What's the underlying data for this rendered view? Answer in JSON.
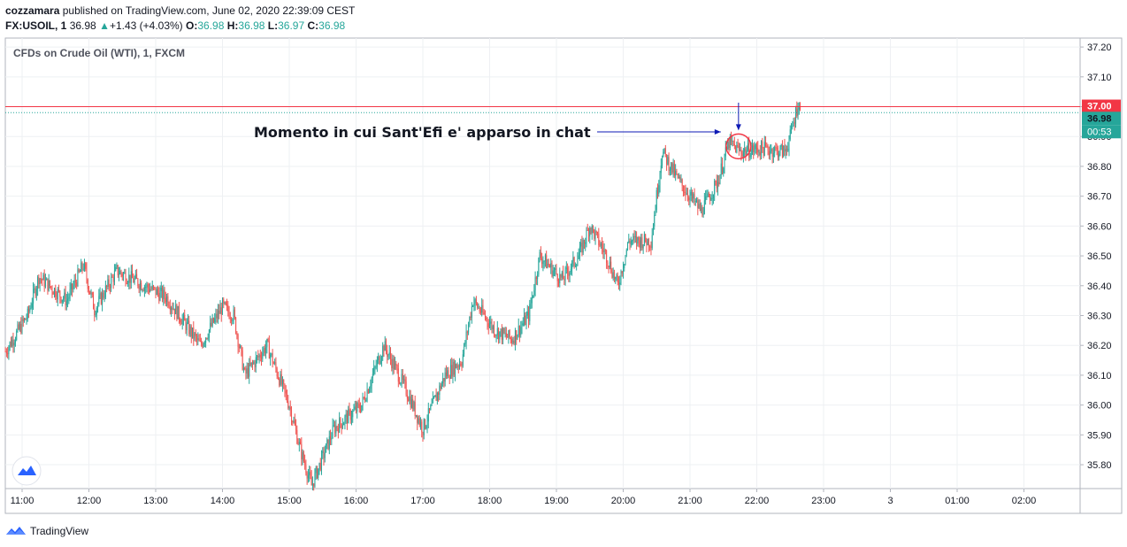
{
  "header": {
    "author": "cozzamara",
    "published_text": "published on TradingView.com, June 02, 2020 22:39:09 CEST",
    "symbol": "FX:USOIL, 1",
    "last": "36.98",
    "change": "+1.43 (+4.03%)",
    "o_label": "O:",
    "o_value": "36.98",
    "h_label": "H:",
    "h_value": "36.98",
    "l_label": "L:",
    "l_value": "36.97",
    "c_label": "C:",
    "c_value": "36.98"
  },
  "chart_data": {
    "type": "candlestick",
    "title": "CFDs on Crude Oil (WTI), 1, FXCM",
    "y_ticks": [
      "37.20",
      "37.10",
      "37.00",
      "36.90",
      "36.80",
      "36.70",
      "36.60",
      "36.50",
      "36.40",
      "36.30",
      "36.20",
      "36.10",
      "36.00",
      "35.90",
      "35.80"
    ],
    "ylim": [
      35.72,
      37.23
    ],
    "x_ticks": [
      "11:00",
      "12:00",
      "13:00",
      "14:00",
      "15:00",
      "16:00",
      "17:00",
      "18:00",
      "19:00",
      "20:00",
      "21:00",
      "22:00",
      "23:00",
      "3",
      "01:00",
      "02:00"
    ],
    "price_path": [
      {
        "t": "10:45",
        "v": 36.18
      },
      {
        "t": "11:05",
        "v": 36.3
      },
      {
        "t": "11:15",
        "v": 36.43
      },
      {
        "t": "11:40",
        "v": 36.35
      },
      {
        "t": "11:55",
        "v": 36.47
      },
      {
        "t": "12:05",
        "v": 36.32
      },
      {
        "t": "12:25",
        "v": 36.45
      },
      {
        "t": "12:50",
        "v": 36.4
      },
      {
        "t": "13:10",
        "v": 36.36
      },
      {
        "t": "13:40",
        "v": 36.2
      },
      {
        "t": "14:00",
        "v": 36.33
      },
      {
        "t": "14:10",
        "v": 36.3
      },
      {
        "t": "14:20",
        "v": 36.1
      },
      {
        "t": "14:40",
        "v": 36.2
      },
      {
        "t": "15:00",
        "v": 36.0
      },
      {
        "t": "15:10",
        "v": 35.85
      },
      {
        "t": "15:20",
        "v": 35.73
      },
      {
        "t": "15:40",
        "v": 35.92
      },
      {
        "t": "16:05",
        "v": 36.0
      },
      {
        "t": "16:25",
        "v": 36.2
      },
      {
        "t": "16:45",
        "v": 36.05
      },
      {
        "t": "17:00",
        "v": 35.92
      },
      {
        "t": "17:20",
        "v": 36.1
      },
      {
        "t": "17:35",
        "v": 36.15
      },
      {
        "t": "17:45",
        "v": 36.35
      },
      {
        "t": "18:05",
        "v": 36.25
      },
      {
        "t": "18:20",
        "v": 36.22
      },
      {
        "t": "18:35",
        "v": 36.3
      },
      {
        "t": "18:45",
        "v": 36.5
      },
      {
        "t": "19:05",
        "v": 36.42
      },
      {
        "t": "19:20",
        "v": 36.5
      },
      {
        "t": "19:30",
        "v": 36.6
      },
      {
        "t": "19:45",
        "v": 36.5
      },
      {
        "t": "19:55",
        "v": 36.4
      },
      {
        "t": "20:05",
        "v": 36.55
      },
      {
        "t": "20:25",
        "v": 36.55
      },
      {
        "t": "20:35",
        "v": 36.85
      },
      {
        "t": "20:50",
        "v": 36.75
      },
      {
        "t": "21:10",
        "v": 36.65
      },
      {
        "t": "21:25",
        "v": 36.75
      },
      {
        "t": "21:35",
        "v": 36.88
      },
      {
        "t": "21:45",
        "v": 36.85
      },
      {
        "t": "22:05",
        "v": 36.86
      },
      {
        "t": "22:25",
        "v": 36.85
      },
      {
        "t": "22:30",
        "v": 36.9
      },
      {
        "t": "22:37",
        "v": 37.01
      },
      {
        "t": "22:39",
        "v": 36.98
      }
    ],
    "price_lines": [
      {
        "value": 37.0,
        "label": "37.00",
        "color": "#f23645",
        "style": "solid"
      },
      {
        "value": 36.98,
        "label": "36.98",
        "color": "#26a69a",
        "style": "dotted"
      }
    ],
    "countdown_label": "00:53",
    "up_color": "#26a69a",
    "down_color": "#ef5350",
    "annotation": {
      "text": "Momento in cui Sant'Efi e' apparso in chat",
      "color": "#0d1ab5",
      "circle_color": "#f23645",
      "target_time": "21:42",
      "target_value": 36.87
    }
  },
  "footer": {
    "brand": "TradingView"
  },
  "colors": {
    "grid": "#eef0f3",
    "axis": "#b2b5be",
    "text": "#131722",
    "accent": "#2962ff"
  }
}
